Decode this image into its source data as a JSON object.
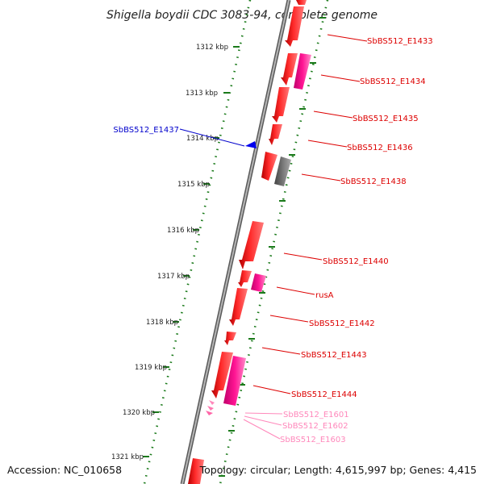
{
  "title": "Shigella boydii CDC 3083-94, complete genome",
  "footer": {
    "accession": "Accession: NC_010658",
    "summary": "Topology: circular; Length: 4,615,997 bp; Genes: 4,415"
  },
  "colors": {
    "backbone": "#8a8a8a",
    "ruler": "#1a7a1a",
    "forward_gene": "#ff0000",
    "pseudo_gene": "#ff1493",
    "gray_gene": "#707070",
    "rna_gene": "#ff99cc",
    "label_red": "#dd0000",
    "label_blue": "#0000cc",
    "label_pink": "#ff88bb"
  },
  "ticks": [
    "1312 kbp",
    "1313 kbp",
    "1314 kbp",
    "1315 kbp",
    "1316 kbp",
    "1317 kbp",
    "1318 kbp",
    "1319 kbp",
    "1320 kbp",
    "1321 kbp"
  ],
  "gene_labels": [
    {
      "text": "SbBS512_E1433",
      "color": "label_red"
    },
    {
      "text": "SbBS512_E1434",
      "color": "label_red"
    },
    {
      "text": "SbBS512_E1435",
      "color": "label_red"
    },
    {
      "text": "SbBS512_E1436",
      "color": "label_red"
    },
    {
      "text": "SbBS512_E1438",
      "color": "label_red"
    },
    {
      "text": "SbBS512_E1437",
      "color": "label_blue"
    },
    {
      "text": "SbBS512_E1440",
      "color": "label_red"
    },
    {
      "text": "rusA",
      "color": "label_red"
    },
    {
      "text": "SbBS512_E1442",
      "color": "label_red"
    },
    {
      "text": "SbBS512_E1443",
      "color": "label_red"
    },
    {
      "text": "SbBS512_E1444",
      "color": "label_red"
    },
    {
      "text": "SbBS512_E1601",
      "color": "label_pink"
    },
    {
      "text": "SbBS512_E1602",
      "color": "label_pink"
    },
    {
      "text": "SbBS512_E1603",
      "color": "label_pink"
    }
  ]
}
